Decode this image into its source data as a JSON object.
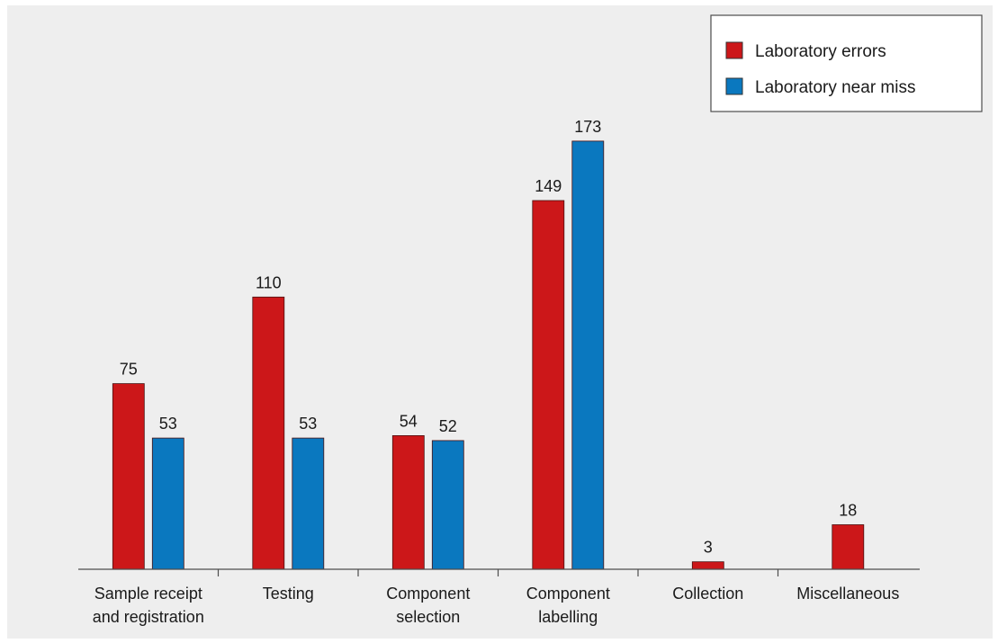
{
  "chart_data": {
    "type": "bar",
    "categories": [
      [
        "Sample receipt",
        "and registration"
      ],
      [
        "Testing"
      ],
      [
        "Component",
        "selection"
      ],
      [
        "Component",
        "labelling"
      ],
      [
        "Collection"
      ],
      [
        "Miscellaneous"
      ]
    ],
    "series": [
      {
        "name": "Laboratory errors",
        "color": "#cc1719",
        "values": [
          75,
          110,
          54,
          149,
          3,
          18
        ]
      },
      {
        "name": "Laboratory near miss",
        "color": "#0a78bf",
        "values": [
          53,
          53,
          52,
          173,
          null,
          null
        ]
      }
    ],
    "title": "",
    "xlabel": "",
    "ylabel": "",
    "ylim": [
      0,
      173
    ],
    "grid": false,
    "legend": "top-right",
    "value_labels": true
  }
}
